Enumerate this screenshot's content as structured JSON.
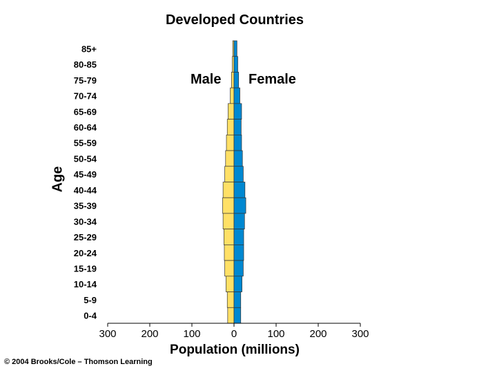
{
  "chart_data": {
    "type": "bar",
    "title": "Developed Countries",
    "xlabel": "Population (millions)",
    "ylabel": "Age",
    "categories": [
      "85+",
      "80-85",
      "75-79",
      "70-74",
      "65-69",
      "60-64",
      "55-59",
      "50-54",
      "45-49",
      "40-44",
      "35-39",
      "30-34",
      "25-29",
      "20-24",
      "15-19",
      "10-14",
      "5-9",
      "0-4"
    ],
    "series": [
      {
        "name": "Male",
        "color": "#FFE066",
        "values": [
          3,
          4,
          6,
          9,
          14,
          16,
          18,
          20,
          22,
          26,
          27,
          26,
          24,
          23,
          22,
          19,
          16,
          15
        ]
      },
      {
        "name": "Female",
        "color": "#0088D1",
        "values": [
          7,
          9,
          11,
          14,
          18,
          17,
          18,
          20,
          22,
          26,
          28,
          25,
          23,
          23,
          22,
          19,
          16,
          16
        ]
      }
    ],
    "xticks": [
      "300",
      "200",
      "100",
      "0",
      "100",
      "200",
      "300"
    ],
    "xlim": [
      -300,
      300
    ],
    "copyright": "© 2004 Brooks/Cole – Thomson Learning"
  }
}
